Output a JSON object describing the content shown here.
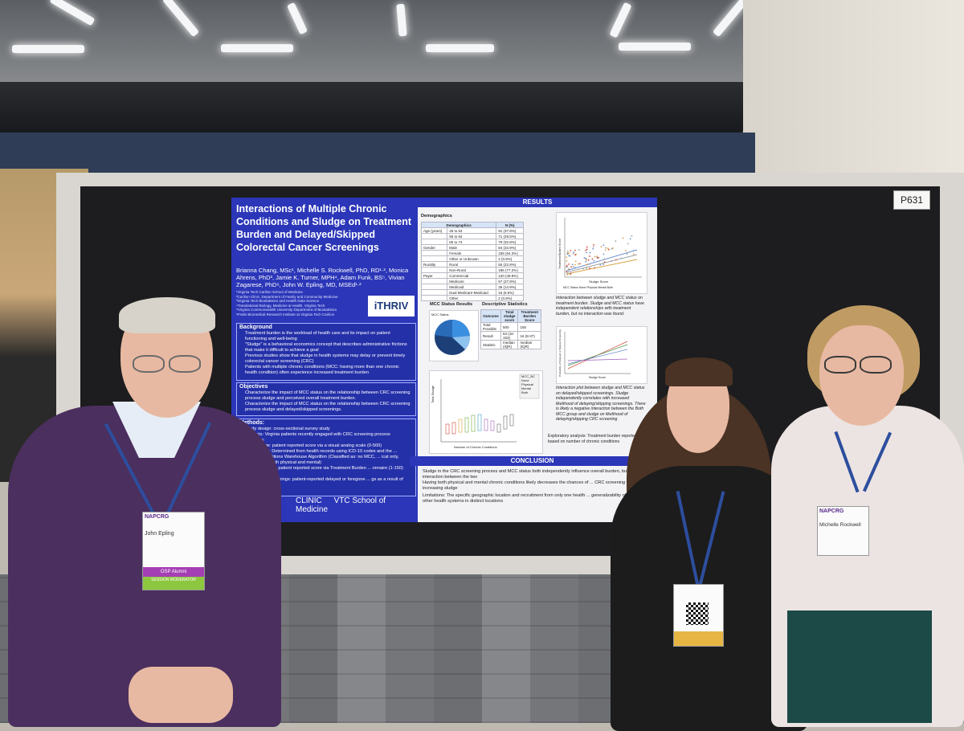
{
  "board": {
    "label": "P631"
  },
  "poster": {
    "title": "Interactions of Multiple Chronic Conditions and Sludge on Treatment Burden and Delayed/Skipped Colorectal Cancer Screenings",
    "authors": "Brianna Chang, MSc¹, Michelle S. Rockwell, PhD, RD¹·², Monica Ahrens, PhD³, Jamie K. Turner, MPH⁴, Adam Funk, BS⁵, Vivian Zagarese, PhD⁶, John W. Epling, MD, MSEd¹·²",
    "affiliations": [
      "¹Virginia Tech Carilion School of Medicine",
      "²Carilion Clinic, Department of Family and Community Medicine",
      "³Virginia Tech Biostatistics and Health Data Science",
      "⁴Translational Biology, Medicine & Health, Virginia Tech",
      "⁵Virginia Commonwealth University Department of Biostatistics",
      "⁶Fralin Biomedical Research Institute at Virginia Tech Carilion"
    ],
    "logo_text": "iTHRIV",
    "background": {
      "heading": "Background",
      "bullets": [
        "Treatment burden is the workload of health care and its impact on patient functioning and well-being",
        "\"Sludge\" is a behavioral economics concept that describes administrative frictions that make it difficult to achieve a goal",
        "Previous studies show that sludge in health systems may delay or prevent timely colorectal cancer screening (CRC)",
        "Patients with multiple chronic conditions (MCC: having more than one chronic health condition) often experience increased treatment burden"
      ]
    },
    "objectives": {
      "heading": "Objectives",
      "bullets": [
        "Characterize the impact of MCC status on the relationship between CRC screening process sludge and perceived overall treatment burden.",
        "Characterize the impact of MCC status on the relationship between CRC screening process sludge and delayed/skipped screenings."
      ]
    },
    "methods": {
      "heading": "Methods:",
      "bullets": [
        "Study design: cross-sectional survey study",
        "Subjects: Virginia patients recently engaged with CRC screening process",
        "Variables:",
        "Total Sludge: patient reported score via a visual analog scale (0-500)",
        "MCC Status: Determined from health records using ICD-10 codes and the ... Chronic Conditions Warehouse Algorithm (Classified as: no MCC, ... ical only, mental only, both physical and mental)",
        "... ment Burden: patient reported score via Treatment Burden ... onnaire (1-150) (Tran 2014)",
        "... /skipped screenings: patient-reported delayed or foregone ... gs as a result of sludge"
      ]
    },
    "footer_logos": [
      "CLINIC",
      "VTC School of Medicine"
    ],
    "results_heading": "RESULTS",
    "demographics": {
      "heading": "Demographics",
      "header": [
        "Demographics",
        "N (%)"
      ],
      "rows": [
        [
          "Age (years)",
          "45 to 54",
          "91 (37.8%)"
        ],
        [
          "",
          "55 to 64",
          "71 (29.5%)"
        ],
        [
          "",
          "65 to 74",
          "79 (32.8%)"
        ],
        [
          "Gender",
          "Male",
          "84 (34.9%)"
        ],
        [
          "",
          "Female",
          "155 (64.3%)"
        ],
        [
          "",
          "Other or Unknown",
          "2 (0.8%)"
        ],
        [
          "Rurality",
          "Rural",
          "55 (22.8%)"
        ],
        [
          "",
          "Non-Rural",
          "186 (77.2%)"
        ],
        [
          "Payer",
          "Commercial",
          "120 (49.8%)"
        ],
        [
          "",
          "Medicare",
          "67 (27.8%)"
        ],
        [
          "",
          "Medicaid",
          "36 (14.9%)"
        ],
        [
          "",
          "Dual Medicare-Medicaid",
          "16 (6.6%)"
        ],
        [
          "",
          "Other",
          "2 (0.8%)"
        ]
      ]
    },
    "mcc_results": {
      "heading": "MCC Status Results",
      "legend_title": "MCC Status"
    },
    "descriptive": {
      "heading": "Descriptive Statistics",
      "header": [
        "Outcome",
        "Total sludge score",
        "Treatment Burden Score"
      ],
      "rows": [
        [
          "Total Possible",
          "500",
          "150"
        ],
        [
          "Result",
          "63 (16-153)",
          "16 (8-37)"
        ],
        [
          "Statistic",
          "median (IQR)",
          "median (IQR)"
        ]
      ]
    },
    "boxplot": {
      "xlabel": "Number of Chronic Conditions",
      "ylabel": "Total Sludge",
      "legend_title": "MCC_BC",
      "legend": [
        "None",
        "Physical",
        "Mental",
        "Both"
      ]
    },
    "scatter1": {
      "xlabel": "Sludge Score",
      "ylabel": "Treatment Burden Score",
      "legend": [
        "MCC Status",
        "None",
        "Physical",
        "Mental",
        "Both"
      ]
    },
    "scatter2": {
      "xlabel": "Sludge Score",
      "ylabel": "Probability of Delayed or Skipped Screening"
    },
    "caption1": "Interaction between sludge and MCC status on treatment burden. Sludge and MCC status have independent relationships with treatment burden, but no interaction was found.",
    "caption2": "Interaction plot between sludge and MCC status on delayed/skipped screenings. Sludge independently correlates with increased likelihood of delaying/skipping screenings. There is likely a negative interaction between the Both MCC group and sludge on likelihood of delaying/skipping CRC screening",
    "exploratory": "Exploratory analysis: Treatment burden reported based on number of chronic conditions",
    "conclusion_heading": "CONCLUSION",
    "conclusion_bullets": [
      "Sludge in the CRC screening process and MCC status both independently influence overall burden, but there is no interaction between the two",
      "Having both physical and mental chronic conditions likely decreases the chances of ... CRC screening with increasing sludge"
    ],
    "limitations": "Limitations: The specific geographic location and recruitment from only one health ... generalizability of the results to other health systems in distinct locations"
  },
  "badges": {
    "left": {
      "org": "NAPCRG",
      "name": "John Epling",
      "ribbon1": "OSP Alumni",
      "ribbon2": "SESSION MODERATOR"
    },
    "right": {
      "org": "NAPCRG",
      "name": "Michelle Rockwell"
    }
  },
  "colors": {
    "poster_blue": "#2b36b8",
    "board_black": "#1d1d1f",
    "sweater_purple": "#4b2f5e",
    "pie_blue": "#2f7fd0"
  }
}
